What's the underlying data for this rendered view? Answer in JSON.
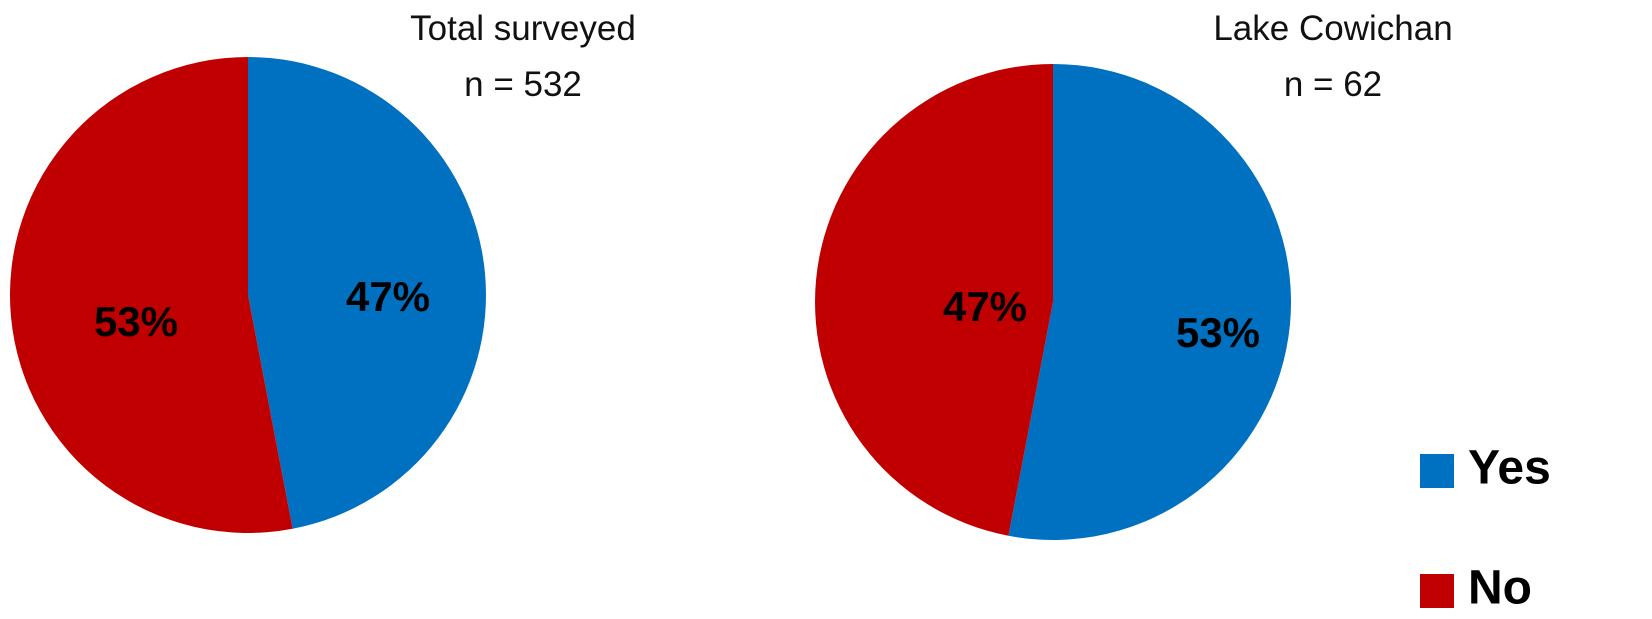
{
  "chart_data": [
    {
      "type": "pie",
      "title": "Total surveyed",
      "subtitle": "n = 532",
      "start_angle_deg": 0,
      "direction": "clockwise",
      "slices": [
        {
          "label": "Yes",
          "value": 47,
          "display": "47%"
        },
        {
          "label": "No",
          "value": 53,
          "display": "53%"
        }
      ]
    },
    {
      "type": "pie",
      "title": "Lake Cowichan",
      "subtitle": "n = 62",
      "start_angle_deg": 0,
      "direction": "clockwise",
      "slices": [
        {
          "label": "Yes",
          "value": 53,
          "display": "53%"
        },
        {
          "label": "No",
          "value": 47,
          "display": "47%"
        }
      ]
    }
  ],
  "legend": {
    "placement": "bottom-right",
    "items": [
      {
        "label": "Yes",
        "color": "#0070C0"
      },
      {
        "label": "No",
        "color": "#C00000"
      }
    ]
  },
  "colors": {
    "Yes": "#0070C0",
    "No": "#C00000"
  }
}
